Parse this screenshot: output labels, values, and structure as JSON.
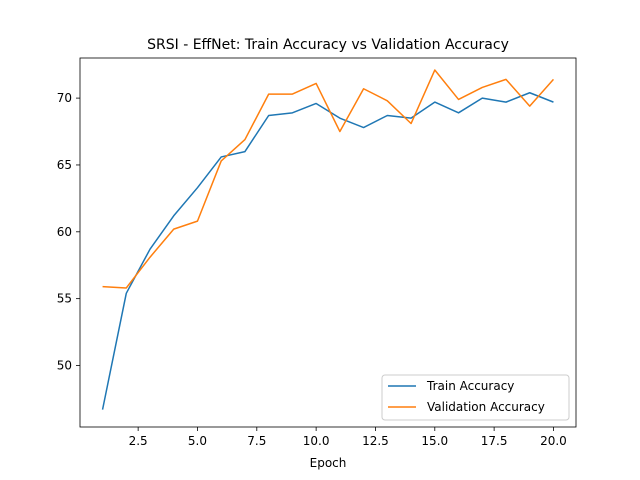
{
  "chart_data": {
    "type": "line",
    "title": "SRSI - EffNet: Train Accuracy vs Validation Accuracy",
    "xlabel": "Epoch",
    "ylabel": "",
    "xlim": [
      0.05,
      20.95
    ],
    "ylim": [
      45.4,
      73.0
    ],
    "xticks": [
      2.5,
      5.0,
      7.5,
      10.0,
      12.5,
      15.0,
      17.5,
      20.0
    ],
    "xtick_labels": [
      "2.5",
      "5.0",
      "7.5",
      "10.0",
      "12.5",
      "15.0",
      "17.5",
      "20.0"
    ],
    "yticks": [
      50,
      55,
      60,
      65,
      70
    ],
    "ytick_labels": [
      "50",
      "55",
      "60",
      "65",
      "70"
    ],
    "grid": false,
    "legend_position": "lower-right",
    "x": [
      1,
      2,
      3,
      4,
      5,
      6,
      7,
      8,
      9,
      10,
      11,
      12,
      13,
      14,
      15,
      16,
      17,
      18,
      19,
      20
    ],
    "series": [
      {
        "name": "Train Accuracy",
        "color": "#1f77b4",
        "values": [
          46.7,
          55.4,
          58.7,
          61.2,
          63.3,
          65.6,
          66.0,
          68.7,
          68.9,
          69.6,
          68.5,
          67.8,
          68.7,
          68.5,
          69.7,
          68.9,
          70.0,
          69.7,
          70.4,
          69.7
        ]
      },
      {
        "name": "Validation Accuracy",
        "color": "#ff7f0e",
        "values": [
          55.9,
          55.8,
          58.1,
          60.2,
          60.8,
          65.3,
          66.9,
          70.3,
          70.3,
          71.1,
          67.5,
          70.7,
          69.8,
          68.1,
          72.1,
          69.9,
          70.8,
          71.4,
          69.4,
          71.4
        ]
      }
    ]
  }
}
